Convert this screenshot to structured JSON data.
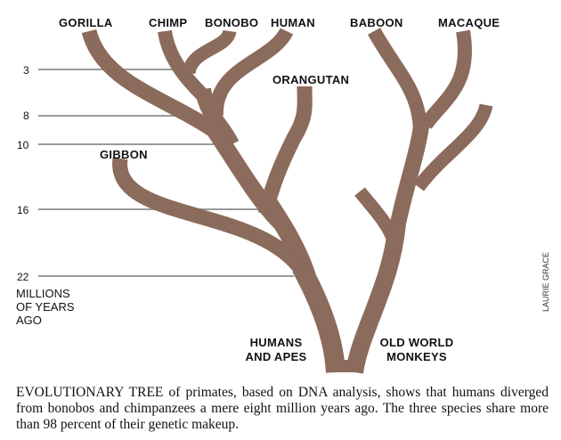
{
  "species": {
    "gorilla": "GORILLA",
    "chimp": "CHIMP",
    "bonobo": "BONOBO",
    "human": "HUMAN",
    "baboon": "BABOON",
    "macaque": "MACAQUE",
    "orangutan": "ORANGUTAN",
    "gibbon": "GIBBON"
  },
  "groups": {
    "humans_and_apes": [
      "HUMANS",
      "AND APES"
    ],
    "old_world_monkeys": [
      "OLD WORLD",
      "MONKEYS"
    ]
  },
  "time_axis": {
    "ticks": [
      "3",
      "8",
      "10",
      "16",
      "22"
    ],
    "unit": [
      "MILLIONS",
      "OF YEARS",
      "AGO"
    ]
  },
  "credit": "LAURIE GRACE",
  "caption": {
    "lead": "EVOLUTIONARY TREE",
    "text": " of primates, based on DNA analysis, shows that humans diverged from bonobos and chimpanzees a mere eight million years ago. The three species share more than 98 percent of their genetic makeup."
  },
  "colors": {
    "branch": "#8b6b5c",
    "grid_line": "#9a9a9a"
  }
}
